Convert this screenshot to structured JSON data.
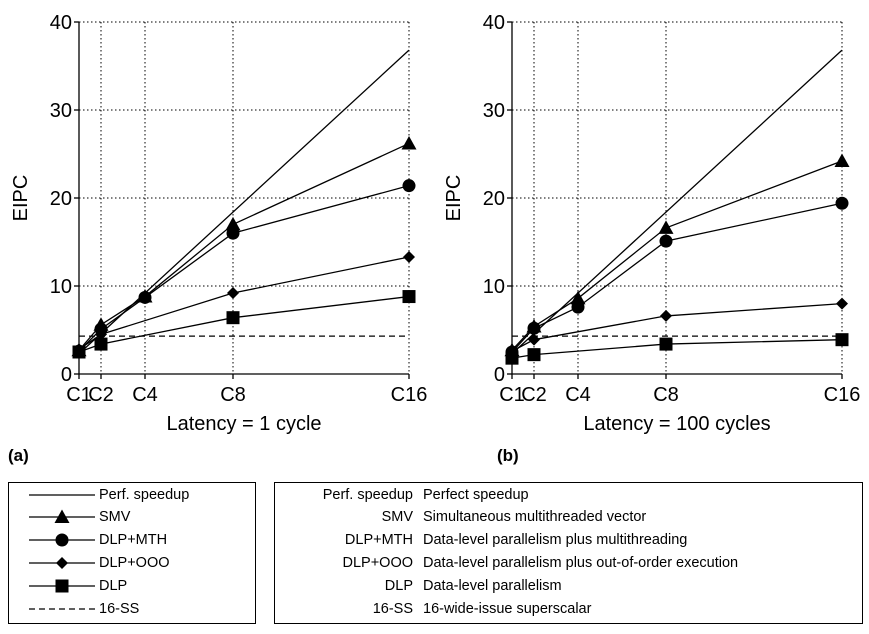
{
  "chart_data": [
    {
      "type": "line",
      "panel_label": "(a)",
      "xlabel": "Latency = 1 cycle",
      "ylabel": "EIPC",
      "x_categories": [
        "C1",
        "C2",
        "C4",
        "C8",
        "C16"
      ],
      "x_values": [
        1,
        2,
        4,
        8,
        16
      ],
      "xlim": [
        1,
        16
      ],
      "ylim": [
        0,
        40
      ],
      "yticks": [
        0,
        10,
        20,
        30,
        40
      ],
      "grid": "dotted",
      "series": [
        {
          "name": "Perf. speedup",
          "marker": "none",
          "dash": false,
          "x": [
            1,
            16
          ],
          "y": [
            2.3,
            36.8
          ]
        },
        {
          "name": "SMV",
          "marker": "triangle",
          "dash": false,
          "x": [
            1,
            2,
            4,
            8,
            16
          ],
          "y": [
            2.7,
            5.6,
            8.8,
            17.0,
            26.2
          ]
        },
        {
          "name": "DLP+MTH",
          "marker": "circle",
          "dash": false,
          "x": [
            1,
            2,
            4,
            8,
            16
          ],
          "y": [
            2.6,
            5.1,
            8.7,
            16.0,
            21.4
          ]
        },
        {
          "name": "DLP+OOO",
          "marker": "diamond",
          "dash": false,
          "x": [
            1,
            2,
            8,
            16
          ],
          "y": [
            2.8,
            4.5,
            9.2,
            13.3
          ]
        },
        {
          "name": "DLP",
          "marker": "square",
          "dash": false,
          "x": [
            1,
            2,
            8,
            16
          ],
          "y": [
            2.5,
            3.4,
            6.4,
            8.8
          ]
        },
        {
          "name": "16-SS",
          "marker": "none",
          "dash": true,
          "x": [
            1,
            16
          ],
          "y": [
            4.3,
            4.3
          ]
        }
      ]
    },
    {
      "type": "line",
      "panel_label": "(b)",
      "xlabel": "Latency = 100 cycles",
      "ylabel": "EIPC",
      "x_categories": [
        "C1",
        "C2",
        "C4",
        "C8",
        "C16"
      ],
      "x_values": [
        1,
        2,
        4,
        8,
        16
      ],
      "xlim": [
        1,
        16
      ],
      "ylim": [
        0,
        40
      ],
      "yticks": [
        0,
        10,
        20,
        30,
        40
      ],
      "grid": "dotted",
      "series": [
        {
          "name": "Perf. speedup",
          "marker": "none",
          "dash": false,
          "x": [
            1,
            16
          ],
          "y": [
            2.3,
            36.8
          ]
        },
        {
          "name": "SMV",
          "marker": "triangle",
          "dash": false,
          "x": [
            1,
            2,
            4,
            8,
            16
          ],
          "y": [
            2.7,
            5.4,
            8.6,
            16.6,
            24.2
          ]
        },
        {
          "name": "DLP+MTH",
          "marker": "circle",
          "dash": false,
          "x": [
            1,
            2,
            4,
            8,
            16
          ],
          "y": [
            2.5,
            5.2,
            7.6,
            15.1,
            19.4
          ]
        },
        {
          "name": "DLP+OOO",
          "marker": "diamond",
          "dash": false,
          "x": [
            1,
            2,
            8,
            16
          ],
          "y": [
            2.6,
            3.9,
            6.6,
            8.0
          ]
        },
        {
          "name": "DLP",
          "marker": "square",
          "dash": false,
          "x": [
            1,
            2,
            8,
            16
          ],
          "y": [
            1.8,
            2.2,
            3.4,
            3.9
          ]
        },
        {
          "name": "16-SS",
          "marker": "none",
          "dash": true,
          "x": [
            1,
            16
          ],
          "y": [
            4.3,
            4.3
          ]
        }
      ]
    }
  ],
  "legend": {
    "items": [
      {
        "label": "Perf. speedup",
        "marker": "none",
        "dash": false
      },
      {
        "label": "SMV",
        "marker": "triangle",
        "dash": false
      },
      {
        "label": "DLP+MTH",
        "marker": "circle",
        "dash": false
      },
      {
        "label": "DLP+OOO",
        "marker": "diamond",
        "dash": false
      },
      {
        "label": "DLP",
        "marker": "square",
        "dash": false
      },
      {
        "label": "16-SS",
        "marker": "none",
        "dash": true
      }
    ]
  },
  "definitions": {
    "items": [
      {
        "abbr": "Perf. speedup",
        "text": "Perfect speedup"
      },
      {
        "abbr": "SMV",
        "text": "Simultaneous multithreaded vector"
      },
      {
        "abbr": "DLP+MTH",
        "text": "Data-level parallelism plus multithreading"
      },
      {
        "abbr": "DLP+OOO",
        "text": "Data-level parallelism plus out-of-order execution"
      },
      {
        "abbr": "DLP",
        "text": "Data-level parallelism"
      },
      {
        "abbr": "16-SS",
        "text": "16-wide-issue superscalar"
      }
    ]
  }
}
